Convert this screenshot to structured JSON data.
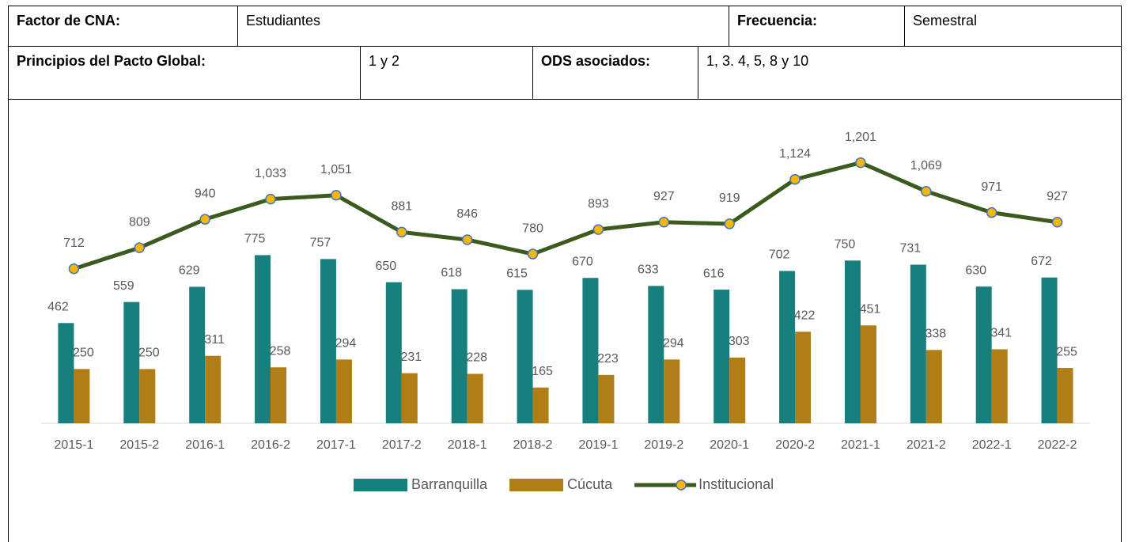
{
  "table": {
    "rows": [
      [
        "Factor de CNA:",
        "Estudiantes",
        "Frecuencia:",
        "Semestral"
      ],
      [
        "Principios del Pacto Global:",
        "1 y 2",
        "ODS asociados:",
        "1, 3. 4, 5, 8 y 10"
      ]
    ]
  },
  "chart_data": {
    "type": "bar-line",
    "categories": [
      "2015-1",
      "2015-2",
      "2016-1",
      "2016-2",
      "2017-1",
      "2017-2",
      "2018-1",
      "2018-2",
      "2019-1",
      "2019-2",
      "2020-1",
      "2020-2",
      "2021-1",
      "2021-2",
      "2022-1",
      "2022-2"
    ],
    "ylim": [
      0,
      1400
    ],
    "legend": "bottom",
    "series": [
      {
        "name": "Barranquilla",
        "type": "bar",
        "color": "#17807f",
        "values": [
          462,
          559,
          629,
          775,
          757,
          650,
          618,
          615,
          670,
          633,
          616,
          702,
          750,
          731,
          630,
          672
        ]
      },
      {
        "name": "Cúcuta",
        "type": "bar",
        "color": "#b07e14",
        "values": [
          250,
          250,
          311,
          258,
          294,
          231,
          228,
          165,
          223,
          294,
          303,
          422,
          451,
          338,
          341,
          255
        ]
      },
      {
        "name": "Institucional",
        "type": "line",
        "color": "#3d5a1e",
        "marker_color": "#f5b700",
        "values": [
          712,
          809,
          940,
          1033,
          1051,
          881,
          846,
          780,
          893,
          927,
          919,
          1124,
          1201,
          1069,
          971,
          927
        ],
        "value_labels": [
          "712",
          "809",
          "940",
          "1,033",
          "1,051",
          "881",
          "846",
          "780",
          "893",
          "927",
          "919",
          "1,124",
          "1,201",
          "1,069",
          "971",
          "927"
        ]
      }
    ]
  }
}
